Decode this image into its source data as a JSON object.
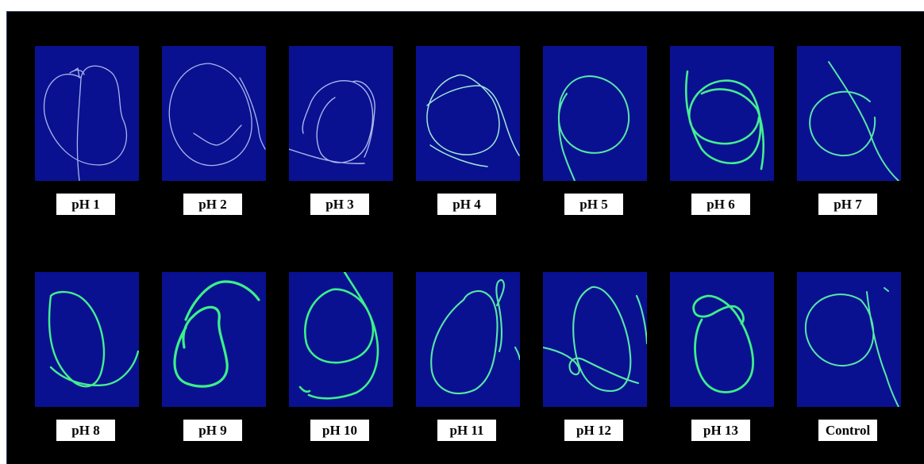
{
  "figure": {
    "panels": [
      {
        "label": "pH 1"
      },
      {
        "label": "pH 2"
      },
      {
        "label": "pH 3"
      },
      {
        "label": "pH 4"
      },
      {
        "label": "pH 5"
      },
      {
        "label": "pH 6"
      },
      {
        "label": "pH 7"
      },
      {
        "label": "pH 8"
      },
      {
        "label": "pH 9"
      },
      {
        "label": "pH 10"
      },
      {
        "label": "pH 11"
      },
      {
        "label": "pH 12"
      },
      {
        "label": "pH 13"
      },
      {
        "label": "Control"
      }
    ],
    "colors": {
      "background": "#000000",
      "panel": "#0a1190",
      "fiber_low": "#9fb0e8",
      "fiber_high": "#3cf08a",
      "label_bg": "#ffffff",
      "label_text": "#000000"
    }
  }
}
